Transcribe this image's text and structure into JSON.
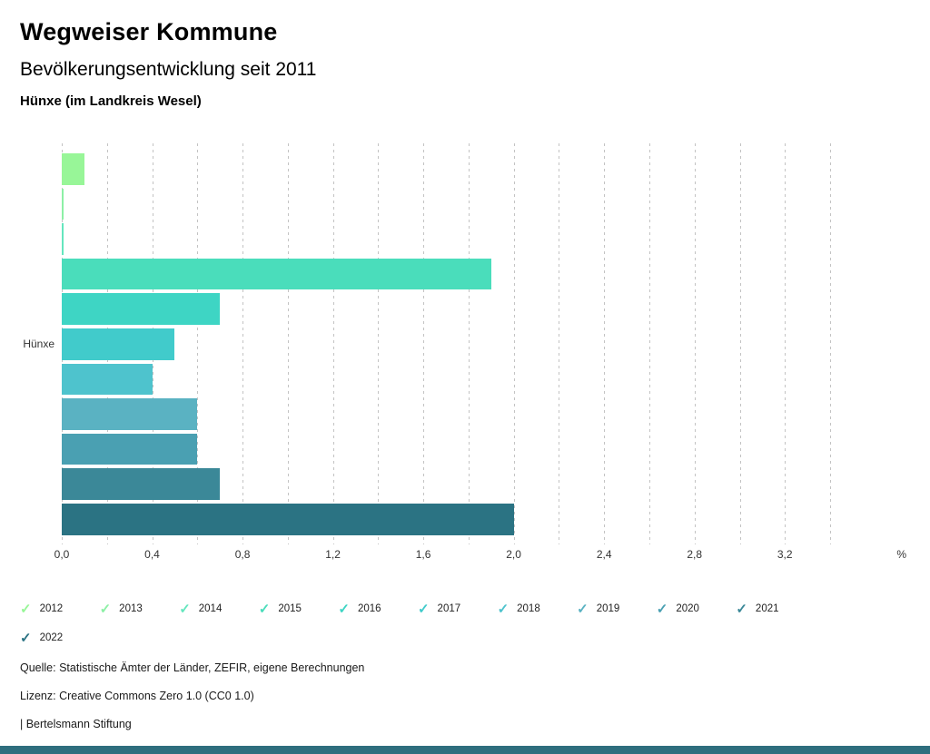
{
  "header": {
    "title": "Wegweiser Kommune",
    "subtitle": "Bevölkerungsentwicklung seit 2011",
    "region": "Hünxe (im Landkreis Wesel)"
  },
  "chart_data": {
    "type": "bar",
    "orientation": "horizontal",
    "group_label": "Hünxe",
    "categories": [
      "2012",
      "2013",
      "2014",
      "2015",
      "2016",
      "2017",
      "2018",
      "2019",
      "2020",
      "2021",
      "2022"
    ],
    "series": [
      {
        "name": "2012",
        "value": 0.1,
        "color": "#98F698"
      },
      {
        "name": "2013",
        "value": 0.0,
        "color": "#8DF0A6"
      },
      {
        "name": "2014",
        "value": 0.0,
        "color": "#65E6BE"
      },
      {
        "name": "2015",
        "value": 1.9,
        "color": "#4ADDBB"
      },
      {
        "name": "2016",
        "value": 0.7,
        "color": "#3ED5C4"
      },
      {
        "name": "2017",
        "value": 0.5,
        "color": "#41CBCB"
      },
      {
        "name": "2018",
        "value": 0.4,
        "color": "#4EC3CD"
      },
      {
        "name": "2019",
        "value": 0.6,
        "color": "#5AB2C2"
      },
      {
        "name": "2020",
        "value": 0.6,
        "color": "#4AA0B2"
      },
      {
        "name": "2021",
        "value": 0.7,
        "color": "#3B8898"
      },
      {
        "name": "2022",
        "value": 2.0,
        "color": "#2B7383"
      }
    ],
    "xlim": [
      0,
      3.4
    ],
    "grid_step": 0.2,
    "grid": true,
    "x_ticks": [
      {
        "label": "0,0",
        "value": 0.0
      },
      {
        "label": "0,4",
        "value": 0.4
      },
      {
        "label": "0,8",
        "value": 0.8
      },
      {
        "label": "1,2",
        "value": 1.2
      },
      {
        "label": "1,6",
        "value": 1.6
      },
      {
        "label": "2,0",
        "value": 2.0
      },
      {
        "label": "2,4",
        "value": 2.4
      },
      {
        "label": "2,8",
        "value": 2.8
      },
      {
        "label": "3,2",
        "value": 3.2
      }
    ],
    "unit_label": "%",
    "legend_position": "bottom",
    "legend_check_icon": "✓",
    "legend_items_per_row": 10
  },
  "footer": {
    "source": "Quelle: Statistische Ämter der Länder, ZEFIR, eigene Berechnungen",
    "license": "Lizenz: Creative Commons Zero 1.0 (CC0 1.0)",
    "attribution": "| Bertelsmann Stiftung"
  },
  "ui": {
    "bottom_bar_color": "#2E6E7E"
  }
}
